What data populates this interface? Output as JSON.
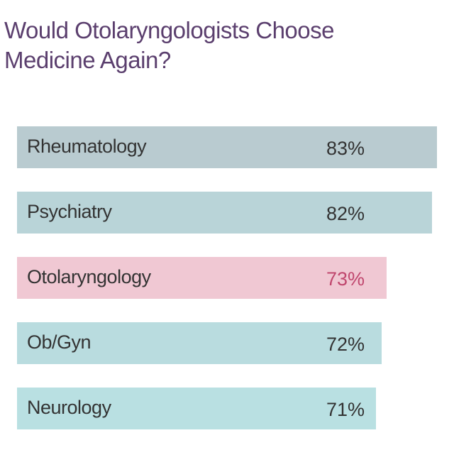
{
  "chart_data": {
    "type": "bar",
    "orientation": "horizontal",
    "title": "Would Otolaryngologists Choose Medicine Again?",
    "categories": [
      "Rheumatology",
      "Psychiatry",
      "Otolaryngology",
      "Ob/Gyn",
      "Neurology"
    ],
    "values": [
      83,
      82,
      73,
      72,
      71
    ],
    "value_labels": [
      "83%",
      "82%",
      "73%",
      "72%",
      "71%"
    ],
    "colors": [
      "#b9cbd0",
      "#b9d4d8",
      "#f0c8d3",
      "#b9dcdf",
      "#b9e0e2"
    ],
    "label_colors": [
      "#333333",
      "#333333",
      "#c0476e",
      "#333333",
      "#333333"
    ]
  }
}
